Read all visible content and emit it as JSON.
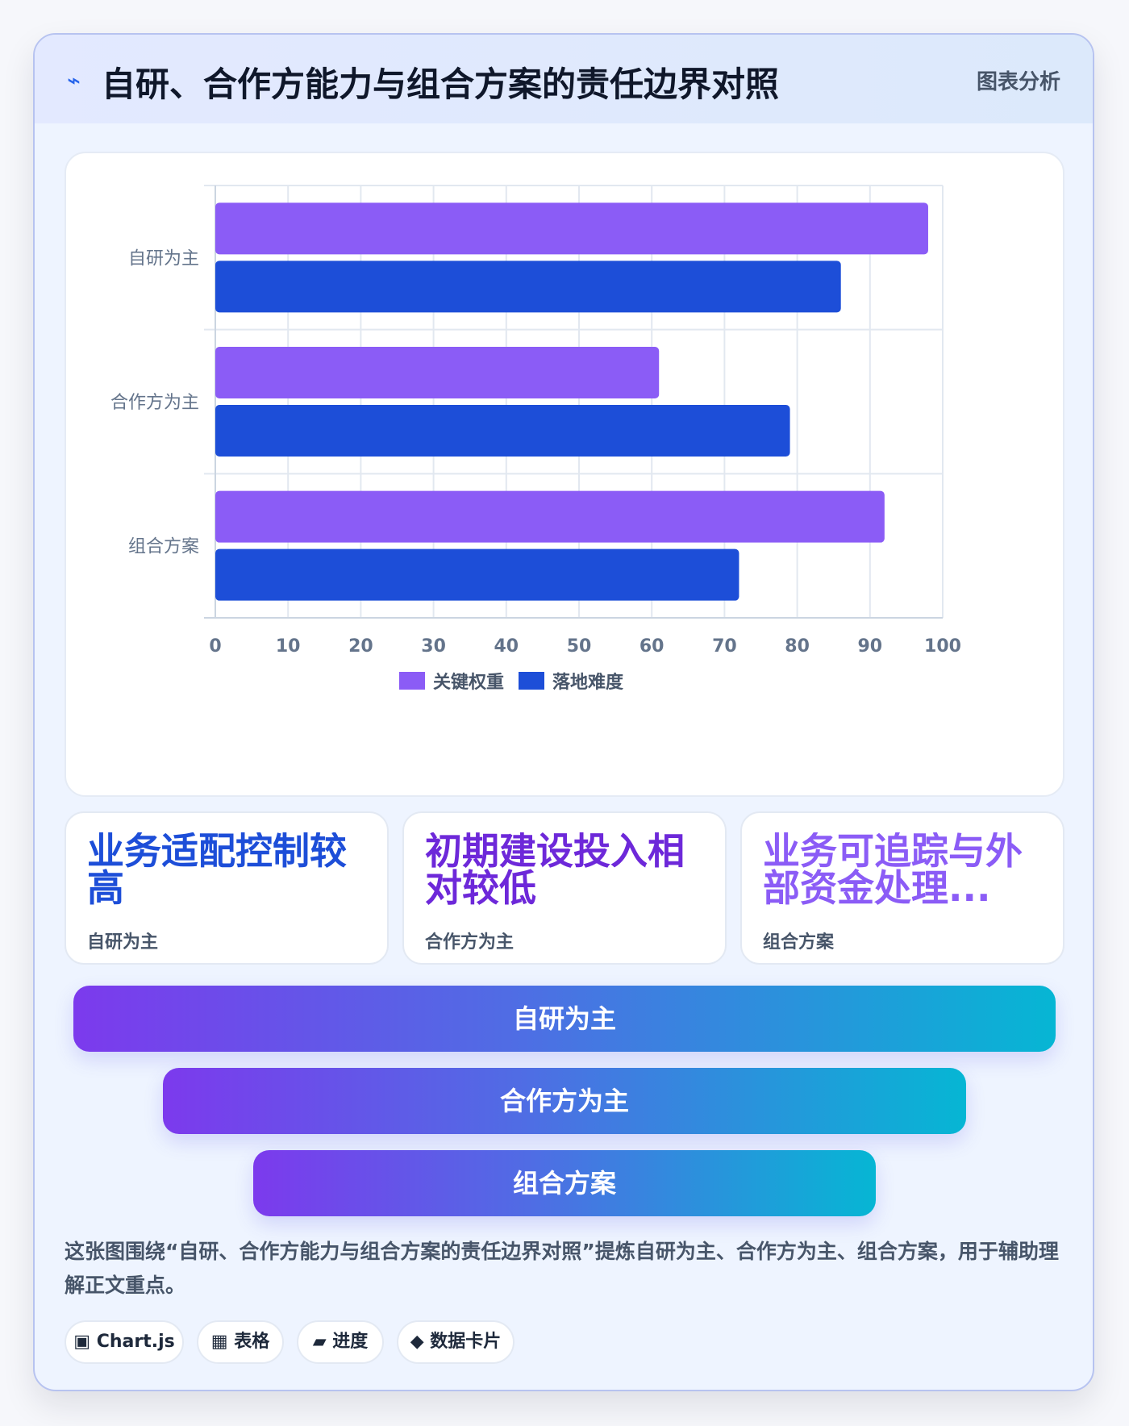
{
  "header": {
    "icon": "bolt-icon",
    "title": "自研、合作方能力与组合方案的责任边界对照",
    "tag": "图表分析"
  },
  "chart_data": {
    "type": "bar",
    "orientation": "horizontal",
    "categories": [
      "自研为主",
      "合作方为主",
      "组合方案"
    ],
    "series": [
      {
        "name": "关键权重",
        "values": [
          98,
          61,
          92
        ],
        "color": "#8b5cf6"
      },
      {
        "name": "落地难度",
        "values": [
          86,
          79,
          72
        ],
        "color": "#1d4ed8"
      }
    ],
    "xlim": [
      0,
      100
    ],
    "xticks": [
      "0",
      "10",
      "20",
      "30",
      "40",
      "50",
      "60",
      "70",
      "80",
      "90",
      "100"
    ],
    "grid": true,
    "legend": "bottom"
  },
  "stats": [
    {
      "value": "业务适配控制较高",
      "label": "自研为主",
      "color": "#1d4ed8"
    },
    {
      "value": "初期建设投入相对较低",
      "label": "合作方为主",
      "color": "#6d28d9"
    },
    {
      "value": "业务可追踪与外部资金处理...",
      "label": "组合方案",
      "color": "#8b5cf6"
    }
  ],
  "pyramid": [
    "自研为主",
    "合作方为主",
    "组合方案"
  ],
  "summary": "这张图围绕“自研、合作方能力与组合方案的责任边界对照”提炼自研为主、合作方为主、组合方案，用于辅助理解正文重点。",
  "pills": [
    {
      "icon": "▣",
      "label": "Chart.js"
    },
    {
      "icon": "▦",
      "label": "表格"
    },
    {
      "icon": "▰",
      "label": "进度"
    },
    {
      "icon": "◆",
      "label": "数据卡片"
    }
  ]
}
